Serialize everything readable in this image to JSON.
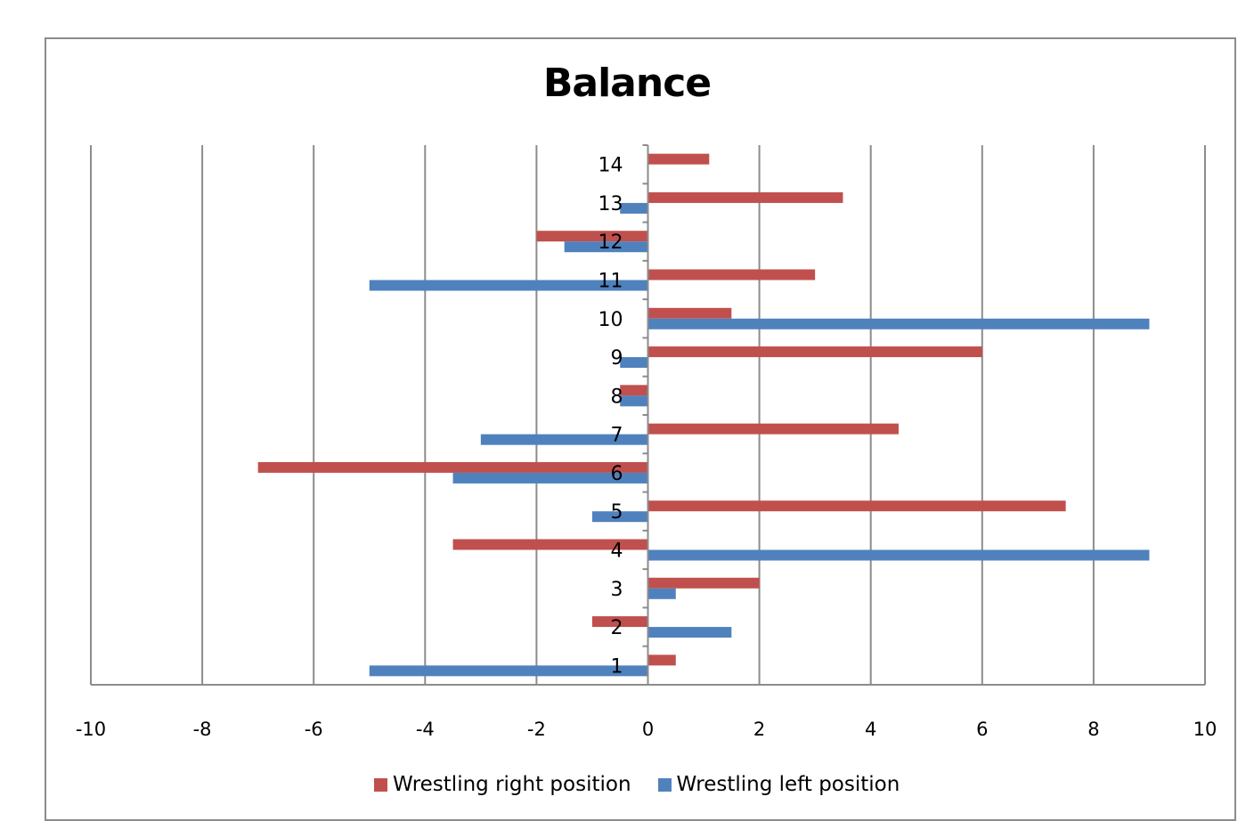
{
  "chart_data": {
    "type": "bar",
    "orientation": "horizontal",
    "title": "Balance",
    "categories": [
      "1",
      "2",
      "3",
      "4",
      "5",
      "6",
      "7",
      "8",
      "9",
      "10",
      "11",
      "12",
      "13",
      "14"
    ],
    "series": [
      {
        "name": "Wrestling right position",
        "color": "#C0504D",
        "values": [
          0.5,
          -1,
          2,
          -3.5,
          7.5,
          -7,
          4.5,
          -0.5,
          6,
          1.5,
          3,
          -2,
          3.5,
          1.1
        ]
      },
      {
        "name": "Wrestling left position",
        "color": "#4F81BD",
        "values": [
          -5,
          1.5,
          0.5,
          9,
          -1,
          -3.5,
          -3,
          -0.5,
          -0.5,
          9,
          -5,
          -1.5,
          -0.5,
          0
        ]
      }
    ],
    "xlim": [
      -10,
      10
    ],
    "xticks": [
      "-10",
      "-8",
      "-6",
      "-4",
      "-2",
      "0",
      "2",
      "4",
      "6",
      "8",
      "10"
    ],
    "grid": "vertical",
    "legend_position": "bottom"
  }
}
